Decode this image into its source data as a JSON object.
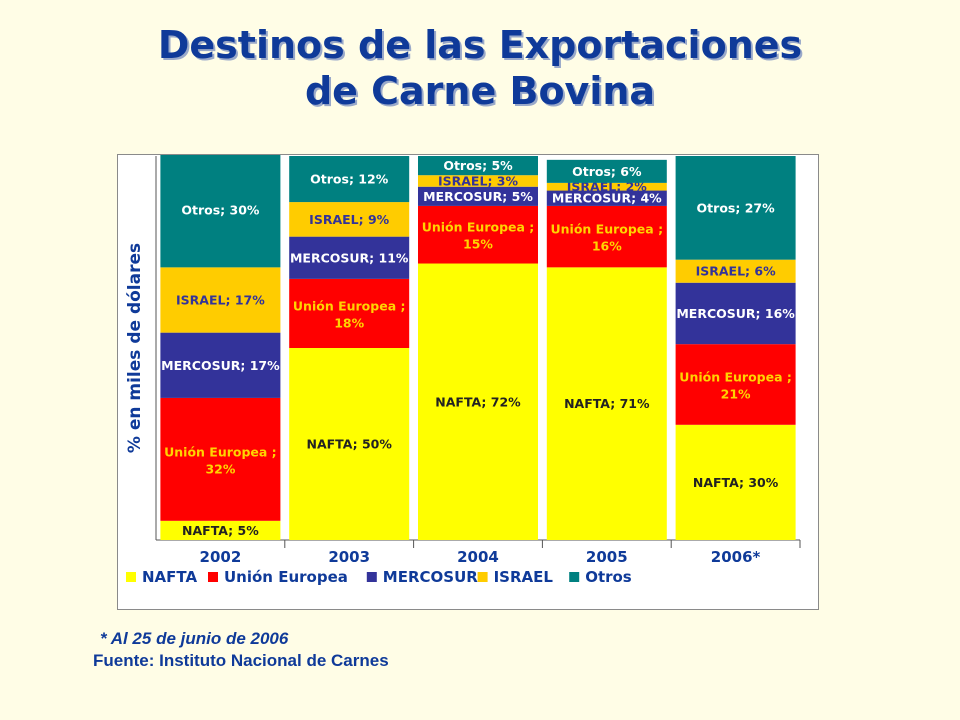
{
  "slide": {
    "title_line1": "Destinos de las Exportaciones",
    "title_line2": "de Carne Bovina",
    "footnote": "* Al 25 de junio de 2006",
    "source": "Fuente: Instituto Nacional de Carnes"
  },
  "chart_data": {
    "type": "bar",
    "stacked": true,
    "percent": true,
    "title": "",
    "xlabel": "",
    "ylabel": "% en miles de dólares",
    "ylim": [
      0,
      100
    ],
    "grid": false,
    "legend_position": "bottom",
    "categories": [
      "2002",
      "2003",
      "2004",
      "2005",
      "2006*"
    ],
    "series": [
      {
        "name": "NAFTA",
        "color": "#ffff00",
        "label_color": "#222222",
        "values": [
          5,
          50,
          72,
          71,
          30
        ],
        "labels": [
          "NAFTA; 5%",
          "NAFTA; 50%",
          "NAFTA; 72%",
          "NAFTA; 71%",
          "NAFTA; 30%"
        ]
      },
      {
        "name": "Unión Europea",
        "color": "#ff0000",
        "label_color": "#ffd400",
        "values": [
          32,
          18,
          15,
          16,
          21
        ],
        "labels": [
          "Unión Europea ; 32%",
          "Unión Europea ; 18%",
          "Unión Europea ; 15%",
          "Unión Europea ; 16%",
          "Unión Europea ; 21%"
        ]
      },
      {
        "name": "MERCOSUR",
        "color": "#33339a",
        "label_color": "#ffffff",
        "values": [
          17,
          11,
          5,
          4,
          16
        ],
        "labels": [
          "MERCOSUR; 17%",
          "MERCOSUR; 11%",
          "MERCOSUR; 5%",
          "MERCOSUR; 4%",
          "MERCOSUR; 16%"
        ]
      },
      {
        "name": "ISRAEL",
        "color": "#ffcc00",
        "label_color": "#333399",
        "values": [
          17,
          9,
          3,
          2,
          6
        ],
        "labels": [
          "ISRAEL; 17%",
          "ISRAEL; 9%",
          "ISRAEL; 3%",
          "ISRAEL; 2%",
          "ISRAEL; 6%"
        ]
      },
      {
        "name": "Otros",
        "color": "#008080",
        "label_color": "#ffffff",
        "values": [
          30,
          12,
          5,
          6,
          27
        ],
        "labels": [
          "Otros; 30%",
          "Otros; 12%",
          "Otros; 5%",
          "Otros; 6%",
          "Otros; 27%"
        ]
      }
    ]
  }
}
